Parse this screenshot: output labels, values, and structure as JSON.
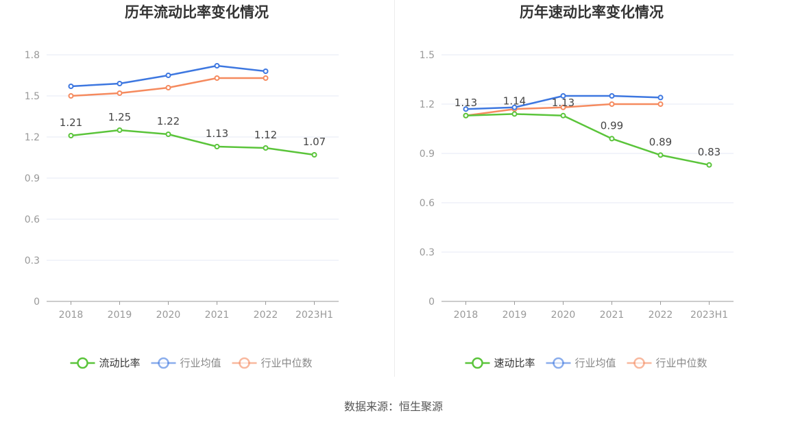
{
  "source_note": "数据来源：恒生聚源",
  "colors": {
    "main": "#5ac43a",
    "avg": "#3d77e0",
    "median": "#f58a5e",
    "grid": "#e6e9f5",
    "axis": "#999999"
  },
  "chart_data": [
    {
      "type": "line",
      "title": "历年流动比率变化情况",
      "categories": [
        "2018",
        "2019",
        "2020",
        "2021",
        "2022",
        "2023H1"
      ],
      "ylim": [
        0,
        1.8
      ],
      "yticks": [
        "0",
        "0.3",
        "0.6",
        "0.9",
        "1.2",
        "1.5",
        "1.8"
      ],
      "series": [
        {
          "name": "流动比率",
          "values": [
            1.21,
            1.25,
            1.22,
            1.13,
            1.12,
            1.07
          ],
          "labels": [
            "1.21",
            "1.25",
            "1.22",
            "1.13",
            "1.12",
            "1.07"
          ]
        },
        {
          "name": "行业均值",
          "values": [
            1.57,
            1.59,
            1.65,
            1.72,
            1.68,
            null
          ]
        },
        {
          "name": "行业中位数",
          "values": [
            1.5,
            1.52,
            1.56,
            1.63,
            1.63,
            null
          ]
        }
      ]
    },
    {
      "type": "line",
      "title": "历年速动比率变化情况",
      "categories": [
        "2018",
        "2019",
        "2020",
        "2021",
        "2022",
        "2023H1"
      ],
      "ylim": [
        0,
        1.5
      ],
      "yticks": [
        "0",
        "0.3",
        "0.6",
        "0.9",
        "1.2",
        "1.5"
      ],
      "series": [
        {
          "name": "速动比率",
          "values": [
            1.13,
            1.14,
            1.13,
            0.99,
            0.89,
            0.83
          ],
          "labels": [
            "1.13",
            "1.14",
            "1.13",
            "0.99",
            "0.89",
            "0.83"
          ]
        },
        {
          "name": "行业均值",
          "values": [
            1.17,
            1.18,
            1.25,
            1.25,
            1.24,
            null
          ]
        },
        {
          "name": "行业中位数",
          "values": [
            1.13,
            1.17,
            1.18,
            1.2,
            1.2,
            null
          ]
        }
      ]
    }
  ]
}
